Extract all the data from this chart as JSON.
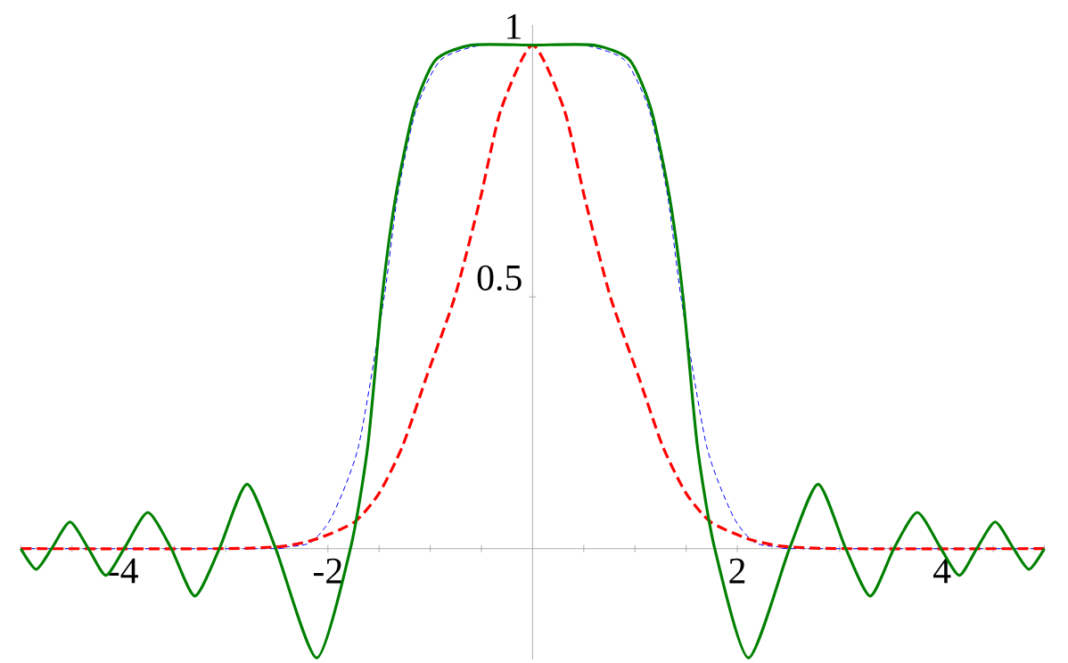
{
  "chart_data": {
    "type": "line",
    "xlim": [
      -5,
      5
    ],
    "ylim": [
      -0.22,
      1.04
    ],
    "xticks": [
      {
        "value": -5,
        "label": null
      },
      {
        "value": -4.5,
        "label": null
      },
      -4,
      {
        "value": -3.5,
        "label": null
      },
      {
        "value": -3,
        "label": null
      },
      {
        "value": -2.5,
        "label": null
      },
      -2,
      {
        "value": -1.5,
        "label": null
      },
      {
        "value": -1,
        "label": null
      },
      {
        "value": -0.5,
        "label": null
      },
      {
        "value": 0.5,
        "label": null
      },
      {
        "value": 1,
        "label": null
      },
      {
        "value": 1.5,
        "label": null
      },
      2,
      {
        "value": 2.5,
        "label": null
      },
      {
        "value": 3,
        "label": null
      },
      {
        "value": 3.5,
        "label": null
      },
      4,
      {
        "value": 4.5,
        "label": null
      },
      {
        "value": 5,
        "label": null
      }
    ],
    "yticks": [
      0.5,
      1
    ],
    "grid": false,
    "marker": "none",
    "series": [
      {
        "color": "#0000ff",
        "line_style": "dashed",
        "x": [
          -5,
          -2.6,
          -2.43,
          -2.17,
          -1.96,
          -1.7,
          -1.45,
          -1.32,
          -1.14,
          -0.9,
          -0.5,
          0,
          0.5,
          0.9,
          1.14,
          1.32,
          1.45,
          1.7,
          1.96,
          2.17,
          2.43,
          2.6,
          5
        ],
        "values": [
          0,
          0,
          0.003,
          0.012,
          0.064,
          0.204,
          0.5,
          0.7,
          0.871,
          0.97,
          1,
          1,
          1,
          0.97,
          0.871,
          0.7,
          0.5,
          0.204,
          0.064,
          0.012,
          0.003,
          0,
          0
        ]
      },
      {
        "color": "#ff0000",
        "line_style": "dashed",
        "x": [
          -5,
          -3,
          -2.43,
          -2.1,
          -1.74,
          -1.5,
          -1.27,
          -1.03,
          -0.76,
          -0.51,
          -0.31,
          0,
          0.31,
          0.51,
          0.76,
          1.03,
          1.27,
          1.5,
          1.74,
          2.1,
          2.43,
          3,
          5
        ],
        "values": [
          0,
          0,
          0.005,
          0.02,
          0.053,
          0.11,
          0.204,
          0.345,
          0.5,
          0.696,
          0.871,
          1,
          0.871,
          0.696,
          0.5,
          0.345,
          0.204,
          0.11,
          0.053,
          0.02,
          0.005,
          0,
          0
        ]
      },
      {
        "color": "#008000",
        "line_style": "solid",
        "x": [
          -5,
          -4.85,
          -4.7,
          -4.52,
          -4.34,
          -4.17,
          -3.99,
          -3.76,
          -3.53,
          -3.3,
          -3.06,
          -2.79,
          -2.51,
          -2.11,
          -1.78,
          -1.61,
          -1.47,
          -1.34,
          -1.16,
          -0.95,
          -0.6,
          0,
          0.6,
          0.95,
          1.16,
          1.34,
          1.47,
          1.61,
          1.78,
          2.11,
          2.51,
          2.79,
          3.06,
          3.3,
          3.53,
          3.76,
          3.99,
          4.17,
          4.34,
          4.52,
          4.7,
          4.85,
          5
        ],
        "values": [
          0,
          -0.041,
          0,
          0.053,
          0,
          -0.053,
          0,
          0.072,
          0,
          -0.094,
          0,
          0.128,
          0,
          -0.217,
          0,
          0.204,
          0.5,
          0.696,
          0.871,
          0.97,
          1,
          1,
          1,
          0.97,
          0.871,
          0.696,
          0.5,
          0.204,
          0,
          -0.217,
          0,
          0.128,
          0,
          -0.094,
          0,
          0.072,
          0,
          -0.053,
          0,
          0.053,
          0,
          -0.041,
          0
        ]
      }
    ]
  }
}
